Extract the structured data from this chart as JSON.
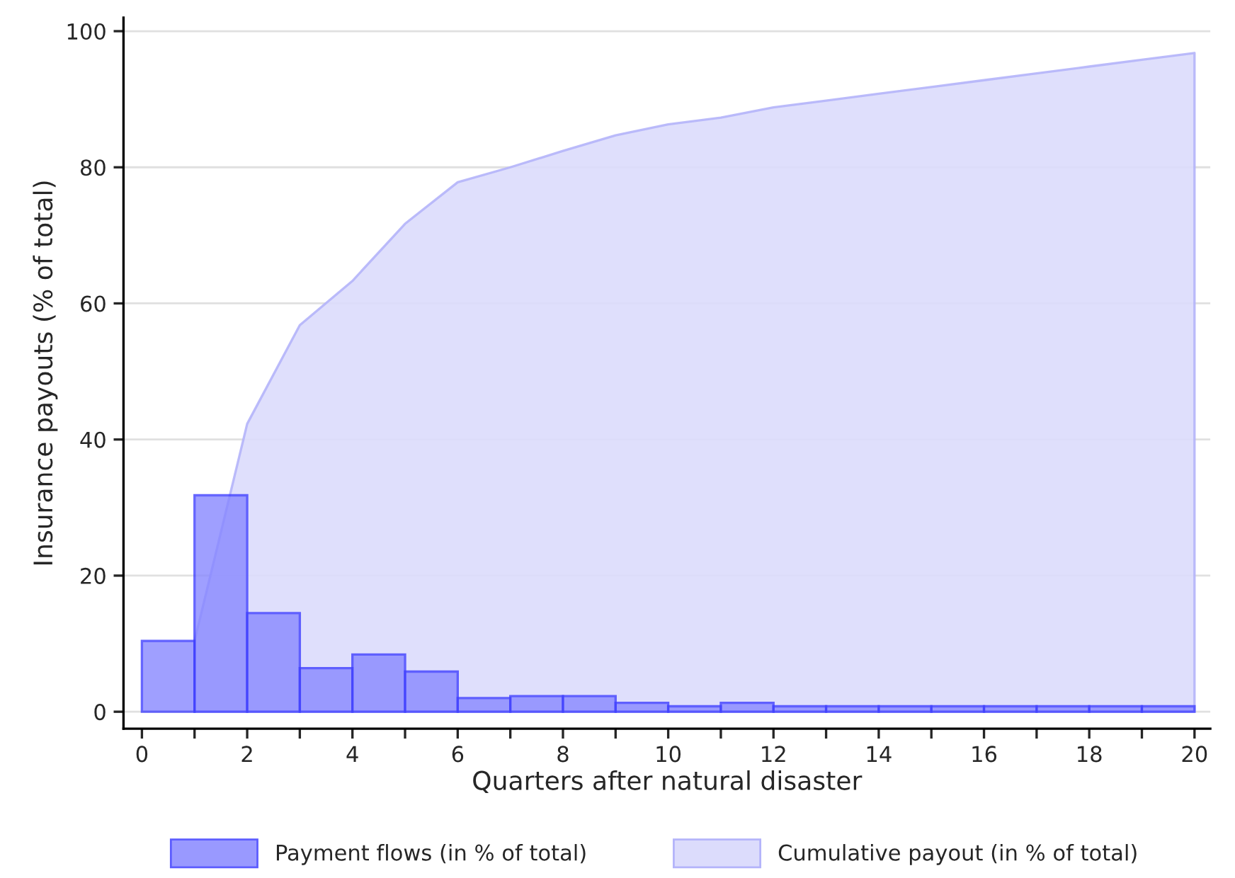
{
  "chart_data": {
    "type": "histogram",
    "xlabel": "Quarters after natural disaster",
    "ylabel": "Insurance payouts (% of total)",
    "bins": [
      0,
      1,
      2,
      3,
      4,
      5,
      6,
      7,
      8,
      9,
      10,
      11,
      12,
      13,
      14,
      15,
      16,
      17,
      18,
      19,
      20
    ],
    "series": [
      {
        "name": "Payment flows (in % of total)",
        "color": "#8888ff",
        "values": [
          10.4,
          31.8,
          14.5,
          6.4,
          8.4,
          5.9,
          2.0,
          2.3,
          2.3,
          1.3,
          0.8,
          1.3,
          0.8,
          0.8,
          0.8,
          0.8,
          0.8,
          0.8,
          0.8,
          0.8
        ]
      },
      {
        "name": "Cumulative payout (in % of total)",
        "type": "area",
        "color": "#dcdcfc",
        "x": [
          1,
          2,
          3,
          4,
          5,
          6,
          7,
          8,
          9,
          10,
          11,
          12,
          13,
          14,
          15,
          16,
          17,
          18,
          19,
          20
        ],
        "values": [
          10.4,
          42.3,
          56.8,
          63.3,
          71.7,
          77.8,
          80.0,
          82.4,
          84.7,
          86.3,
          87.3,
          88.8,
          89.8,
          90.8,
          91.8,
          92.8,
          93.8,
          94.8,
          95.8,
          96.8
        ]
      }
    ],
    "xlim": [
      -0.35,
      20.3
    ],
    "ylim": [
      -2.5,
      102
    ],
    "xticks": [
      0,
      {
        "value": 1,
        "label": null
      },
      2,
      {
        "value": 3,
        "label": null
      },
      4,
      {
        "value": 5,
        "label": null
      },
      6,
      {
        "value": 7,
        "label": null
      },
      8,
      {
        "value": 9,
        "label": null
      },
      10,
      {
        "value": 11,
        "label": null
      },
      12,
      {
        "value": 13,
        "label": null
      },
      14,
      {
        "value": 15,
        "label": null
      },
      16,
      {
        "value": 17,
        "label": null
      },
      18,
      {
        "value": 19,
        "label": null
      },
      20
    ],
    "yticks": [
      0,
      20,
      40,
      60,
      80,
      100
    ],
    "grid": "y",
    "legend": "bottom"
  }
}
